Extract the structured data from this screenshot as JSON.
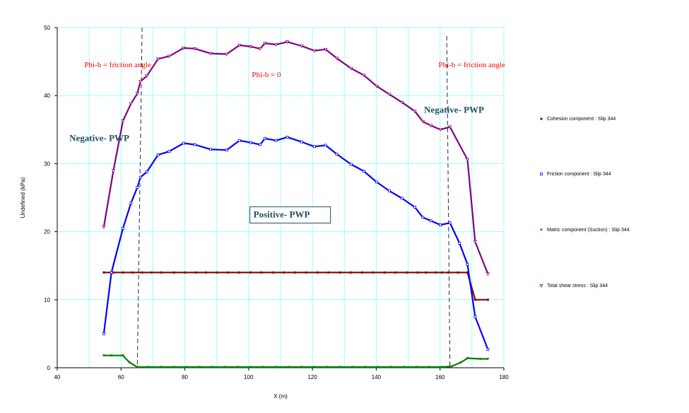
{
  "chart_data": {
    "type": "line",
    "xlabel": "X (m)",
    "ylabel": "Undefined (kPa)",
    "xlim": [
      40,
      180
    ],
    "ylim": [
      0,
      50
    ],
    "xticks": [
      40,
      60,
      80,
      100,
      120,
      140,
      160,
      180
    ],
    "yticks": [
      0,
      10,
      20,
      30,
      40,
      50
    ],
    "grid": true,
    "legend_position": "right",
    "colors": {
      "grid": "#99ffff",
      "axis": "#000000",
      "annotation_red": "#ff0000",
      "annotation_dark": "#1f4e5f",
      "vline": "#1a2a5a"
    },
    "series": [
      {
        "name": "Cohesion component : Slip 344",
        "color": "#8b0000",
        "marker": "square-filled",
        "x": [
          54.6,
          175
        ],
        "y": [
          14,
          14
        ],
        "points": [
          [
            54.6,
            14
          ],
          [
            57.6,
            14
          ],
          [
            60.6,
            14
          ],
          [
            63.6,
            14
          ],
          [
            66.6,
            14
          ],
          [
            69.6,
            14
          ],
          [
            72.6,
            14
          ],
          [
            76.6,
            14
          ],
          [
            80,
            14
          ],
          [
            83.6,
            14
          ],
          [
            86.6,
            14
          ],
          [
            90,
            14
          ],
          [
            93.6,
            14
          ],
          [
            97,
            14
          ],
          [
            100.6,
            14
          ],
          [
            104,
            14
          ],
          [
            107.6,
            14
          ],
          [
            111,
            14
          ],
          [
            114.6,
            14
          ],
          [
            118,
            14
          ],
          [
            121.6,
            14
          ],
          [
            125,
            14
          ],
          [
            128.6,
            14
          ],
          [
            132,
            14
          ],
          [
            135.6,
            14
          ],
          [
            139,
            14
          ],
          [
            142.6,
            14
          ],
          [
            146,
            14
          ],
          [
            149.6,
            14
          ],
          [
            153,
            14
          ],
          [
            155.6,
            14
          ],
          [
            158.6,
            14
          ],
          [
            160.6,
            14
          ],
          [
            162.6,
            14
          ],
          [
            165.6,
            14
          ],
          [
            168.6,
            14
          ],
          [
            171,
            10
          ],
          [
            175,
            10
          ]
        ]
      },
      {
        "name": "Friction component : Slip 344",
        "color": "#0000ff",
        "marker": "square-open",
        "points": [
          [
            54.6,
            5
          ],
          [
            57,
            14
          ],
          [
            60.6,
            20.5
          ],
          [
            63.1,
            24.2
          ],
          [
            65.1,
            26.5
          ],
          [
            66.1,
            28
          ],
          [
            68.1,
            28.8
          ],
          [
            71.6,
            31.3
          ],
          [
            75.1,
            31.8
          ],
          [
            79.6,
            33
          ],
          [
            83.1,
            32.8
          ],
          [
            88.1,
            32.1
          ],
          [
            93.1,
            32
          ],
          [
            97.1,
            33.4
          ],
          [
            100.6,
            33.1
          ],
          [
            103.6,
            32.8
          ],
          [
            105.1,
            33.7
          ],
          [
            108.6,
            33.4
          ],
          [
            112.1,
            33.9
          ],
          [
            116.6,
            33.2
          ],
          [
            120.6,
            32.5
          ],
          [
            124.1,
            32.7
          ],
          [
            127.6,
            31.4
          ],
          [
            132.1,
            29.9
          ],
          [
            136.1,
            28.9
          ],
          [
            140.1,
            27.3
          ],
          [
            144.1,
            26
          ],
          [
            148.1,
            24.9
          ],
          [
            152.1,
            23.6
          ],
          [
            154.6,
            22.1
          ],
          [
            157.1,
            21.6
          ],
          [
            160.1,
            21
          ],
          [
            163.1,
            21.3
          ],
          [
            166.1,
            18.3
          ],
          [
            168.6,
            15.2
          ],
          [
            171,
            7.5
          ],
          [
            175,
            2.7
          ]
        ]
      },
      {
        "name": "Matric component (Suction) : Slip 344",
        "color": "#008000",
        "marker": "triangle-filled",
        "points": [
          [
            54.6,
            1.8
          ],
          [
            57,
            1.8
          ],
          [
            60.6,
            1.8
          ],
          [
            62.6,
            0.8
          ],
          [
            65.1,
            0.1
          ],
          [
            68.6,
            0.1
          ],
          [
            72.6,
            0.1
          ],
          [
            76.6,
            0.1
          ],
          [
            80.6,
            0.1
          ],
          [
            84.6,
            0.1
          ],
          [
            88.6,
            0.1
          ],
          [
            92.6,
            0.1
          ],
          [
            96.6,
            0.1
          ],
          [
            100.6,
            0.1
          ],
          [
            104.6,
            0.1
          ],
          [
            108.6,
            0.1
          ],
          [
            112.6,
            0.1
          ],
          [
            116.6,
            0.1
          ],
          [
            120.6,
            0.1
          ],
          [
            124.6,
            0.1
          ],
          [
            128.6,
            0.1
          ],
          [
            132.6,
            0.1
          ],
          [
            136.6,
            0.1
          ],
          [
            140.6,
            0.1
          ],
          [
            144.6,
            0.1
          ],
          [
            148.6,
            0.1
          ],
          [
            152.6,
            0.1
          ],
          [
            156.6,
            0.1
          ],
          [
            160.6,
            0.1
          ],
          [
            163.6,
            0.2
          ],
          [
            166.6,
            0.8
          ],
          [
            168.6,
            1.4
          ],
          [
            172.6,
            1.3
          ],
          [
            175,
            1.3
          ]
        ]
      },
      {
        "name": "Total shear stress : Slip 344",
        "color": "#800080",
        "marker": "triangle-open",
        "points": [
          [
            54.6,
            20.7
          ],
          [
            57.6,
            29
          ],
          [
            60.6,
            36.3
          ],
          [
            63.1,
            38.8
          ],
          [
            65.1,
            40.3
          ],
          [
            66.1,
            42.1
          ],
          [
            68.1,
            42.9
          ],
          [
            71.6,
            45.4
          ],
          [
            75.1,
            45.8
          ],
          [
            79.6,
            47
          ],
          [
            83.1,
            46.9
          ],
          [
            88.1,
            46.2
          ],
          [
            93.1,
            46.1
          ],
          [
            97.1,
            47.4
          ],
          [
            100.6,
            47.2
          ],
          [
            103.6,
            46.9
          ],
          [
            105.1,
            47.7
          ],
          [
            108.6,
            47.5
          ],
          [
            112.1,
            47.9
          ],
          [
            116.6,
            47.3
          ],
          [
            120.6,
            46.6
          ],
          [
            124.1,
            46.8
          ],
          [
            127.6,
            45.5
          ],
          [
            132.1,
            44
          ],
          [
            136.1,
            43
          ],
          [
            140.1,
            41.4
          ],
          [
            144.1,
            40.2
          ],
          [
            148.1,
            39
          ],
          [
            152.1,
            37.7
          ],
          [
            154.6,
            36.2
          ],
          [
            157.1,
            35.6
          ],
          [
            160.1,
            35
          ],
          [
            163.1,
            35.4
          ],
          [
            168.6,
            30.6
          ],
          [
            171,
            18.5
          ],
          [
            175,
            13.8
          ]
        ]
      }
    ],
    "vlines": [
      66.6,
      65.1,
      162.1,
      163.1
    ],
    "annotations": [
      {
        "text": "Phi-b = friction angle",
        "x": 48.5,
        "y": 44.2,
        "style": "red"
      },
      {
        "text": "Phi-b = 0",
        "x": 101,
        "y": 42.7,
        "style": "red"
      },
      {
        "text": "Phi-b = friction angle",
        "x": 159.5,
        "y": 44.2,
        "style": "red"
      },
      {
        "text": "Negative- PWP",
        "x": 155,
        "y": 37.5,
        "style": "bold"
      },
      {
        "text": "Negative- PWP",
        "x": 43.8,
        "y": 33.3,
        "style": "bold"
      },
      {
        "text": "Positive- PWP",
        "x": 101.5,
        "y": 22.1,
        "style": "bold-boxed"
      }
    ]
  }
}
